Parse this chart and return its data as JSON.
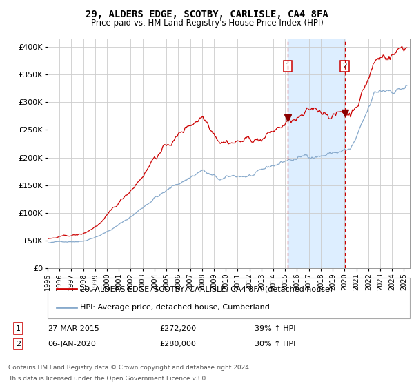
{
  "title1": "29, ALDERS EDGE, SCOTBY, CARLISLE, CA4 8FA",
  "title2": "Price paid vs. HM Land Registry's House Price Index (HPI)",
  "ylabel_ticks": [
    "£0",
    "£50K",
    "£100K",
    "£150K",
    "£200K",
    "£250K",
    "£300K",
    "£350K",
    "£400K"
  ],
  "ytick_vals": [
    0,
    50000,
    100000,
    150000,
    200000,
    250000,
    300000,
    350000,
    400000
  ],
  "ylim": [
    0,
    415000
  ],
  "xlim_start": 1995.0,
  "xlim_end": 2025.5,
  "sale1_date": 2015.23,
  "sale1_price": 272200,
  "sale2_date": 2020.02,
  "sale2_price": 280000,
  "legend_line1": "29, ALDERS EDGE, SCOTBY, CARLISLE, CA4 8FA (detached house)",
  "legend_line2": "HPI: Average price, detached house, Cumberland",
  "footer1": "Contains HM Land Registry data © Crown copyright and database right 2024.",
  "footer2": "This data is licensed under the Open Government Licence v3.0.",
  "line1_color": "#cc0000",
  "line2_color": "#88aacc",
  "shade_color": "#ddeeff",
  "background_color": "#ffffff",
  "grid_color": "#cccccc",
  "sale1_date_str": "27-MAR-2015",
  "sale1_price_str": "£272,200",
  "sale1_hpi_str": "39% ↑ HPI",
  "sale2_date_str": "06-JAN-2020",
  "sale2_price_str": "£280,000",
  "sale2_hpi_str": "30% ↑ HPI",
  "hpi_base_1995": 67000,
  "prop_base_1995": 95000
}
